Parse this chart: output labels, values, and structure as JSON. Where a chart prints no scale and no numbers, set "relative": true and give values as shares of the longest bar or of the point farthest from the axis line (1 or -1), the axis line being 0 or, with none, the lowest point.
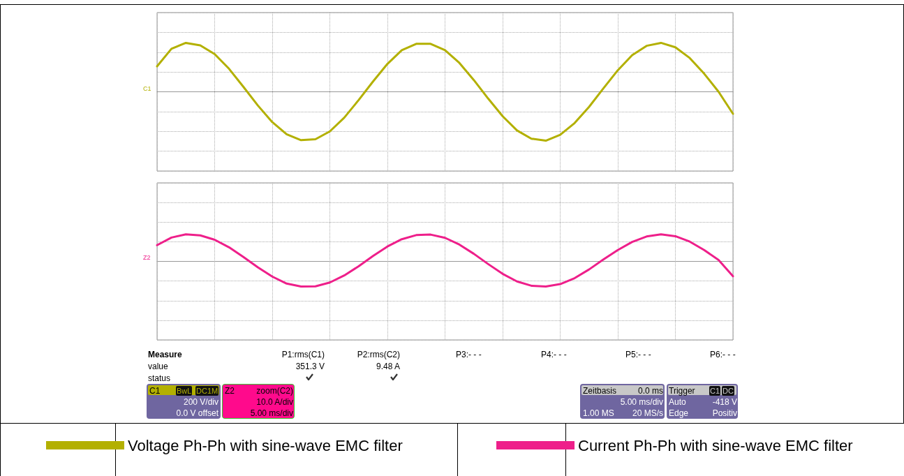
{
  "chart_data": [
    {
      "type": "line",
      "relative": true,
      "grid": true,
      "legend": "bottom left",
      "marker": "none",
      "line_style": "solid",
      "categories": [
        null,
        null,
        null,
        null,
        null,
        null,
        null,
        null,
        null,
        null,
        null,
        null,
        null,
        null,
        null,
        null,
        null,
        null,
        null,
        null,
        null,
        null,
        null,
        null,
        null,
        null,
        null,
        null,
        null,
        null,
        null,
        null,
        null,
        null,
        null,
        null,
        null,
        null,
        null,
        null,
        null
      ],
      "series": [
        {
          "name": "Voltage Ph-Ph with sine-wave EMC filter",
          "color": "#b3b000",
          "values": [
            0.52,
            0.88,
            1.0,
            0.95,
            0.77,
            0.47,
            0.1,
            -0.28,
            -0.62,
            -0.87,
            -0.99,
            -0.97,
            -0.81,
            -0.53,
            -0.17,
            0.21,
            0.57,
            0.85,
            0.98,
            0.98,
            0.85,
            0.59,
            0.24,
            -0.14,
            -0.5,
            -0.79,
            -0.96,
            -1.0,
            -0.88,
            -0.64,
            -0.31,
            0.07,
            0.44,
            0.75,
            0.94,
            1.0,
            0.91,
            0.69,
            0.37,
            0.0,
            -0.45
          ]
        }
      ],
      "annotations": [
        "C1"
      ]
    },
    {
      "type": "line",
      "relative": true,
      "grid": true,
      "legend": "bottom right",
      "marker": "none",
      "line_style": "solid",
      "categories": [
        null,
        null,
        null,
        null,
        null,
        null,
        null,
        null,
        null,
        null,
        null,
        null,
        null,
        null,
        null,
        null,
        null,
        null,
        null,
        null,
        null,
        null,
        null,
        null,
        null,
        null,
        null,
        null,
        null,
        null,
        null,
        null,
        null,
        null,
        null,
        null,
        null,
        null,
        null,
        null,
        null
      ],
      "series": [
        {
          "name": "Current Ph-Ph with sine-wave EMC filter",
          "color": "#ee1f8a",
          "values": [
            0.6,
            0.88,
            1.0,
            0.96,
            0.8,
            0.52,
            0.16,
            -0.22,
            -0.56,
            -0.82,
            -0.93,
            -0.92,
            -0.78,
            -0.52,
            -0.18,
            0.2,
            0.55,
            0.82,
            0.97,
            0.99,
            0.87,
            0.62,
            0.28,
            -0.1,
            -0.46,
            -0.74,
            -0.9,
            -0.93,
            -0.84,
            -0.62,
            -0.3,
            0.07,
            0.42,
            0.72,
            0.92,
            1.0,
            0.93,
            0.73,
            0.42,
            0.05,
            -0.55
          ]
        }
      ],
      "annotations": [
        "Z2",
        "Measure",
        "value",
        "status",
        "P1:rms(C1)",
        "351.3 V",
        "P2:rms(C2)",
        "9.48 A",
        "P3:- - -",
        "P4:- - -",
        "P5:- - -",
        "P6:- - -",
        "C1",
        "BwL",
        "DC1M",
        "200 V/div",
        "0.0 V offset",
        "Z2",
        "zoom(C2)",
        "10.0 A/div",
        "5.00 ms/div",
        "Zeitbasis",
        "0.0 ms",
        "5.00 ms/div",
        "1.00 MS",
        "20 MS/s",
        "Trigger",
        "C1",
        "DC",
        "Auto",
        "-418 V",
        "Edge",
        "Positiv"
      ]
    }
  ]
}
